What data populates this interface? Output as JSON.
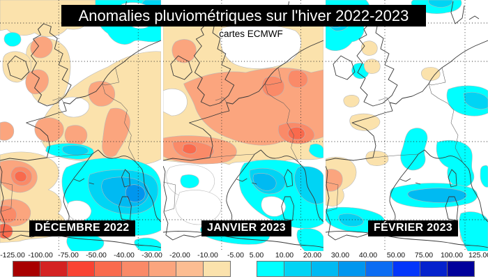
{
  "title": "Anomalies pluviométriques sur l'hiver 2022-2023",
  "subtitle": "cartes ECMWF",
  "panels": [
    {
      "label": "DÉCEMBRE 2022"
    },
    {
      "label": "JANVIER 2023"
    },
    {
      "label": "FÉVRIER 2023"
    }
  ],
  "legend": {
    "negative": {
      "ticks": [
        "-125.00",
        "-100.00",
        "-75.00",
        "-50.00",
        "-40.00",
        "-30.00",
        "-20.00",
        "-10.00",
        "-5.00"
      ],
      "colors": [
        "#a80000",
        "#d42222",
        "#f94333",
        "#f96a4d",
        "#fa8a68",
        "#fba57e",
        "#fcbd92",
        "#fbe2ac"
      ]
    },
    "positive": {
      "ticks": [
        "5.00",
        "10.00",
        "20.00",
        "30.00",
        "40.00",
        "50.00",
        "75.00",
        "100.00",
        "125.00"
      ],
      "colors": [
        "#00ffff",
        "#00d4f4",
        "#00baf2",
        "#0096ee",
        "#0b6cf2",
        "#0336fa",
        "#0522cd",
        "#00009b"
      ]
    }
  },
  "map_style": {
    "coast_color": "#383838",
    "border_color": "#5a5a5a",
    "grid_color": "#2a2a2a",
    "sea_color": "#ffffff"
  }
}
